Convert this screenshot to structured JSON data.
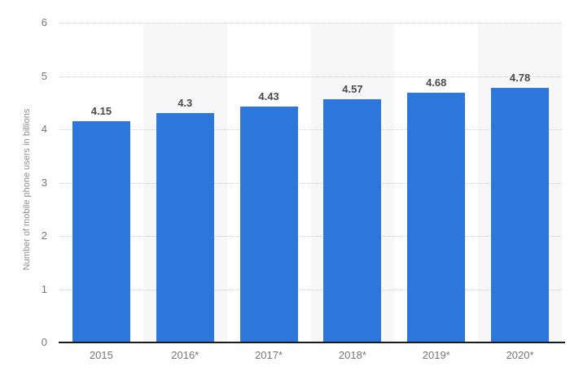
{
  "chart_data": {
    "type": "bar",
    "title": "",
    "categories": [
      "2015",
      "2016*",
      "2017*",
      "2018*",
      "2019*",
      "2020*"
    ],
    "values": [
      4.15,
      4.3,
      4.43,
      4.57,
      4.68,
      4.78
    ],
    "data_labels": [
      "4.15",
      "4.3",
      "4.43",
      "4.57",
      "4.68",
      "4.78"
    ],
    "xlabel": "",
    "ylabel": "Number of mobile phone users in billions",
    "ylim": [
      0,
      6
    ],
    "yticks": [
      0,
      1,
      2,
      3,
      4,
      5,
      6
    ],
    "grid": "horizontal-dotted",
    "banded_columns": [
      1,
      3,
      5
    ],
    "legend": "none"
  },
  "colors": {
    "bar": "#2d76db",
    "band": "#f7f7f7",
    "gridline": "#cfcfcf",
    "axis_line": "#1a1a1a",
    "tick_label": "#757575",
    "data_label": "#4a4a4a",
    "axis_title": "#8d8d8d",
    "background": "#ffffff"
  }
}
